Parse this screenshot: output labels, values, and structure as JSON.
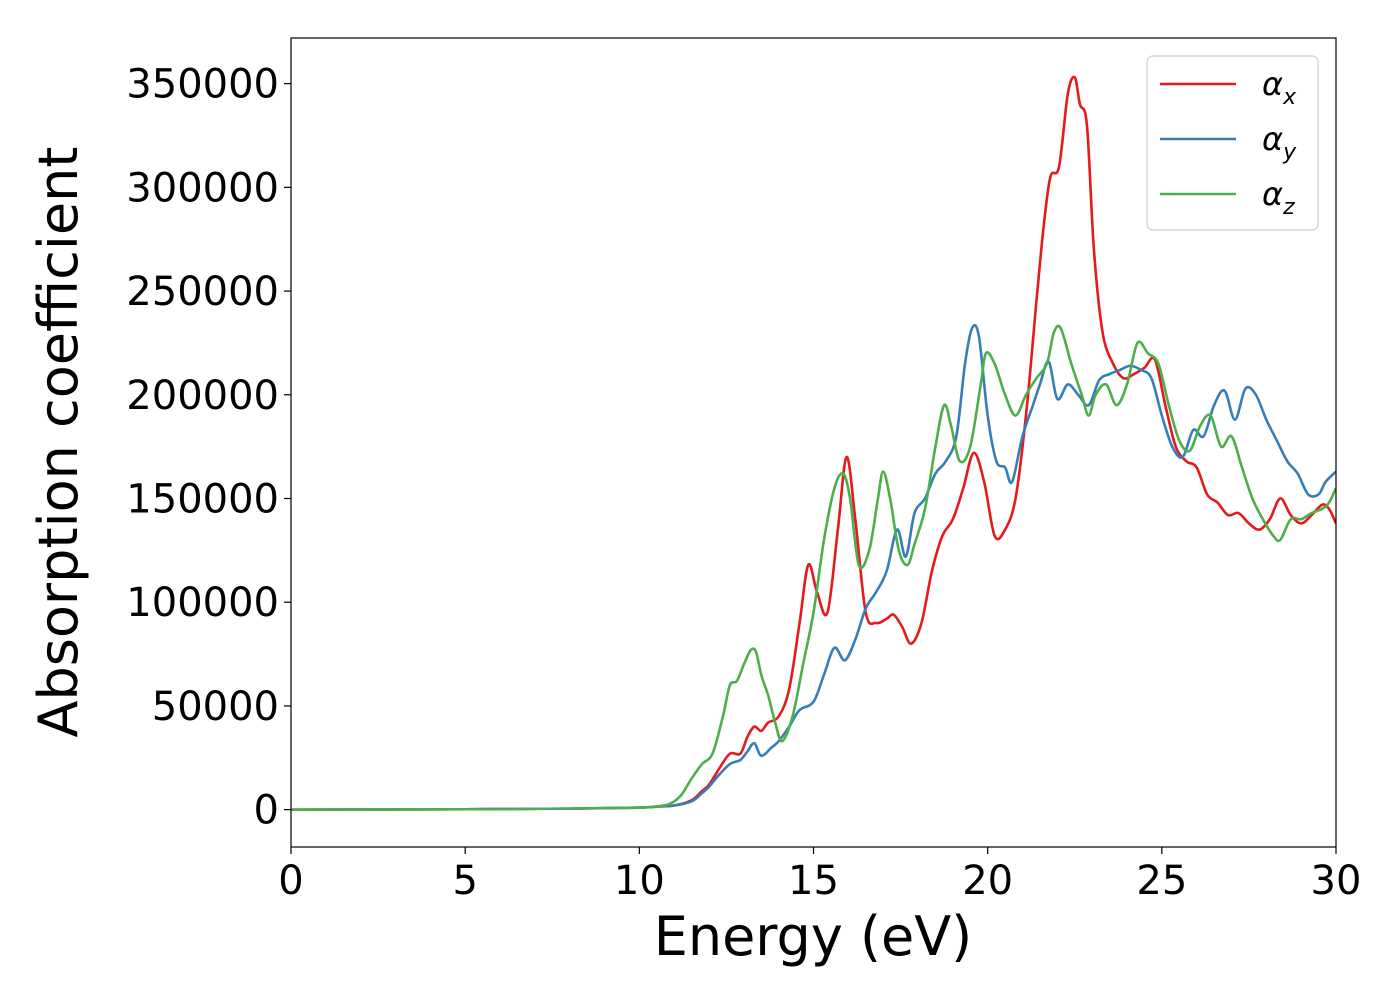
{
  "chart_data": {
    "type": "line",
    "title": "",
    "xlabel": "Energy (eV)",
    "ylabel": "Absorption coefficient",
    "xlim": [
      0,
      30
    ],
    "ylim": [
      -18000,
      372000
    ],
    "xticks": [
      0,
      5,
      10,
      15,
      20,
      25,
      30
    ],
    "yticks": [
      0,
      50000,
      100000,
      150000,
      200000,
      250000,
      300000,
      350000
    ],
    "grid": false,
    "legend_position": "top-right",
    "series": [
      {
        "name": "α",
        "name_sub": "x",
        "color": "#e41a1c",
        "x": [
          0,
          5,
          8,
          10,
          10.5,
          11,
          11.5,
          11.8,
          12,
          12.3,
          12.6,
          12.9,
          13.1,
          13.3,
          13.5,
          13.7,
          14,
          14.3,
          14.6,
          14.85,
          15.1,
          15.4,
          15.7,
          15.95,
          16.2,
          16.5,
          16.8,
          17.1,
          17.3,
          17.55,
          17.8,
          18.1,
          18.4,
          18.7,
          19,
          19.3,
          19.6,
          19.9,
          20.2,
          20.5,
          20.8,
          21.1,
          21.4,
          21.6,
          21.8,
          22.05,
          22.3,
          22.5,
          22.65,
          22.85,
          23.05,
          23.3,
          23.6,
          23.9,
          24.2,
          24.5,
          24.8,
          25.1,
          25.4,
          25.7,
          26,
          26.3,
          26.6,
          26.9,
          27.2,
          27.5,
          27.8,
          28.1,
          28.4,
          28.7,
          29,
          29.3,
          29.6,
          29.8,
          30
        ],
        "y": [
          0,
          200,
          500,
          1000,
          1500,
          2000,
          4500,
          9000,
          12000,
          20000,
          27000,
          27000,
          35000,
          40000,
          38000,
          42000,
          45000,
          58000,
          90000,
          118000,
          105000,
          95000,
          135000,
          170000,
          140000,
          95000,
          90000,
          92000,
          94000,
          88000,
          80000,
          90000,
          115000,
          132000,
          140000,
          155000,
          172000,
          158000,
          132000,
          135000,
          150000,
          190000,
          245000,
          280000,
          305000,
          310000,
          345000,
          353000,
          340000,
          330000,
          270000,
          230000,
          215000,
          208000,
          210000,
          213000,
          217000,
          195000,
          175000,
          168000,
          165000,
          152000,
          148000,
          142000,
          143000,
          138000,
          135000,
          140000,
          150000,
          142000,
          138000,
          142000,
          147000,
          145000,
          138000
        ]
      },
      {
        "name": "α",
        "name_sub": "y",
        "color": "#377eb8",
        "x": [
          0,
          5,
          8,
          10,
          10.5,
          11,
          11.5,
          11.8,
          12,
          12.3,
          12.6,
          12.9,
          13.1,
          13.3,
          13.5,
          13.8,
          14,
          14.3,
          14.6,
          15,
          15.3,
          15.6,
          15.9,
          16.2,
          16.5,
          16.8,
          17.1,
          17.4,
          17.65,
          17.9,
          18.2,
          18.5,
          18.8,
          19.1,
          19.35,
          19.55,
          19.75,
          20,
          20.25,
          20.5,
          20.7,
          21,
          21.3,
          21.5,
          21.75,
          22,
          22.3,
          22.6,
          22.9,
          23.2,
          23.5,
          23.8,
          24.1,
          24.4,
          24.7,
          25,
          25.3,
          25.6,
          25.9,
          26.2,
          26.5,
          26.8,
          27.1,
          27.4,
          27.7,
          28,
          28.3,
          28.6,
          28.9,
          29.2,
          29.5,
          29.7,
          30
        ],
        "y": [
          0,
          200,
          500,
          1000,
          1500,
          2000,
          4000,
          8000,
          11000,
          17000,
          22000,
          24000,
          28000,
          32000,
          26000,
          30000,
          33000,
          40000,
          48000,
          52000,
          65000,
          78000,
          72000,
          82000,
          97000,
          105000,
          115000,
          135000,
          122000,
          143000,
          150000,
          162000,
          168000,
          180000,
          215000,
          232000,
          228000,
          190000,
          168000,
          165000,
          158000,
          180000,
          195000,
          205000,
          216000,
          198000,
          205000,
          200000,
          195000,
          207000,
          210000,
          212000,
          214000,
          212000,
          208000,
          190000,
          175000,
          170000,
          183000,
          180000,
          195000,
          202000,
          188000,
          203000,
          200000,
          188000,
          178000,
          168000,
          162000,
          152000,
          152000,
          158000,
          163000
        ]
      },
      {
        "name": "α",
        "name_sub": "z",
        "color": "#4daf4a",
        "x": [
          0,
          5,
          8,
          10,
          10.5,
          10.9,
          11.2,
          11.5,
          11.8,
          12.1,
          12.4,
          12.6,
          12.8,
          13,
          13.2,
          13.35,
          13.5,
          13.7,
          13.9,
          14.1,
          14.4,
          14.7,
          15,
          15.3,
          15.6,
          15.85,
          16.05,
          16.3,
          16.6,
          16.85,
          17,
          17.2,
          17.45,
          17.7,
          17.9,
          18.2,
          18.5,
          18.75,
          18.95,
          19.2,
          19.5,
          19.8,
          19.95,
          20.2,
          20.5,
          20.8,
          21.1,
          21.4,
          21.7,
          21.9,
          22.1,
          22.4,
          22.7,
          22.9,
          23.1,
          23.4,
          23.7,
          24,
          24.3,
          24.6,
          24.9,
          25.2,
          25.5,
          25.8,
          26.1,
          26.4,
          26.7,
          27,
          27.3,
          27.6,
          27.9,
          28.2,
          28.4,
          28.7,
          29,
          29.3,
          29.6,
          29.8,
          30
        ],
        "y": [
          0,
          200,
          500,
          1000,
          1500,
          3000,
          7000,
          15000,
          22000,
          27000,
          45000,
          60000,
          62000,
          70000,
          77000,
          76000,
          65000,
          55000,
          42000,
          33000,
          45000,
          70000,
          95000,
          130000,
          155000,
          162000,
          150000,
          118000,
          125000,
          150000,
          163000,
          150000,
          125000,
          118000,
          128000,
          145000,
          175000,
          195000,
          185000,
          168000,
          175000,
          205000,
          220000,
          215000,
          200000,
          190000,
          200000,
          208000,
          215000,
          230000,
          232000,
          215000,
          200000,
          190000,
          200000,
          205000,
          195000,
          205000,
          225000,
          220000,
          215000,
          195000,
          178000,
          173000,
          185000,
          190000,
          175000,
          180000,
          165000,
          150000,
          140000,
          132000,
          130000,
          140000,
          140000,
          143000,
          145000,
          148000,
          155000
        ]
      }
    ]
  }
}
